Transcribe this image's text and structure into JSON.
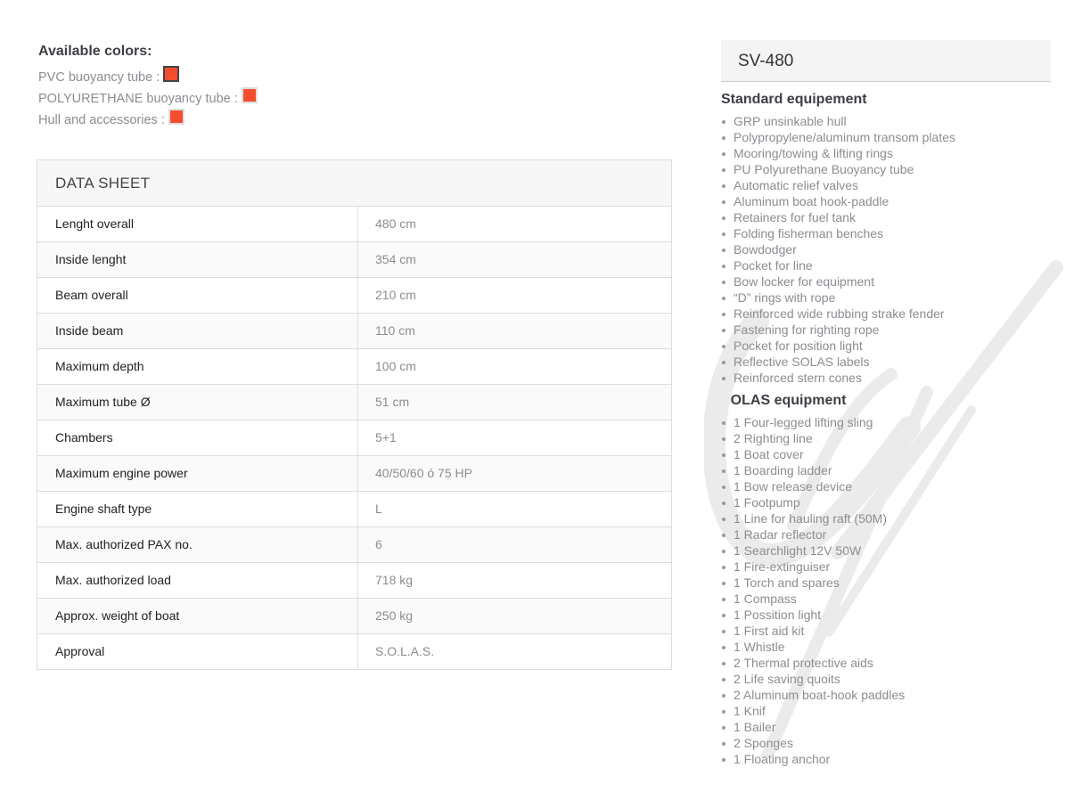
{
  "colors": {
    "title": "Available colors:",
    "items": [
      {
        "label": "PVC buoyancy tube :",
        "color": "#f44d2e",
        "selected": true
      },
      {
        "label": "POLYURETHANE buoyancy tube :",
        "color": "#f44d2e",
        "selected": false
      },
      {
        "label": "Hull and accessories :",
        "color": "#f44d2e",
        "selected": false
      }
    ]
  },
  "datasheet": {
    "title": "DATA SHEET",
    "rows": [
      {
        "label": "Lenght overall",
        "value": "480 cm"
      },
      {
        "label": "Inside lenght",
        "value": "354 cm"
      },
      {
        "label": "Beam overall",
        "value": "210 cm"
      },
      {
        "label": "Inside beam",
        "value": "110 cm"
      },
      {
        "label": "Maximum depth",
        "value": "100 cm"
      },
      {
        "label": "Maximum tube Ø",
        "value": "51 cm"
      },
      {
        "label": "Chambers",
        "value": "5+1"
      },
      {
        "label": "Maximum engine power",
        "value": "40/50/60 ó 75 HP"
      },
      {
        "label": "Engine shaft type",
        "value": "L"
      },
      {
        "label": "Max. authorized PAX no.",
        "value": "6"
      },
      {
        "label": "Max. authorized load",
        "value": "718 kg"
      },
      {
        "label": "Approx. weight of boat",
        "value": "250 kg"
      },
      {
        "label": "Approval",
        "value": "S.O.L.A.S."
      }
    ]
  },
  "model": {
    "title": "SV-480",
    "standard": {
      "title": "Standard equipement",
      "items": [
        "GRP unsinkable hull",
        "Polypropylene/aluminum transom plates",
        "Mooring/towing & lifting rings",
        "PU Polyurethane Buoyancy tube",
        "Automatic relief valves",
        "Aluminum boat hook-paddle",
        "Retainers for fuel tank",
        "Folding fisherman benches",
        "Bowdodger",
        "Pocket for line",
        "Bow locker for equipment",
        "“D” rings with rope",
        "Reinforced wide rubbing strake fender",
        "Fastening for righting rope",
        "Pocket for position light",
        "Reflective SOLAS labels",
        "Reinforced stern cones"
      ]
    },
    "solas": {
      "title": "SOLAS equipment",
      "items": [
        "1 Four-legged lifting sling",
        "2 Righting line",
        "1 Boat cover",
        "1 Boarding ladder",
        "1 Bow release device",
        "1 Footpump",
        "1 Line for hauling raft (50M)",
        "1 Radar reflector",
        "1 Searchlight 12V 50W",
        "1 Fire-extinguiser",
        "1 Torch and spares",
        "1 Compass",
        "1 Possition light",
        "1 First aid kit",
        "1 Whistle",
        "2 Thermal protective aids",
        "2 Life saving quoits",
        "2 Aluminum boat-hook paddles",
        "1 Knif",
        "1 Bailer",
        "2 Sponges",
        "1 Floating anchor"
      ]
    }
  }
}
